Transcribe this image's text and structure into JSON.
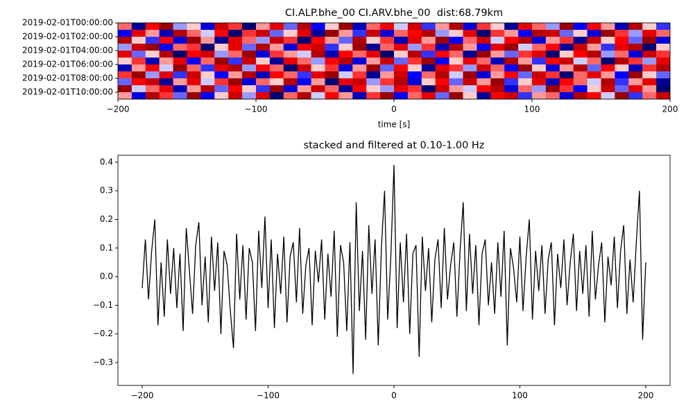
{
  "chart_data": [
    {
      "type": "heatmap",
      "title": "CI.ALP.bhe_00 CI.ARV.bhe_00  dist:68.79km",
      "xlabel": "time [s]",
      "colormap": "seismic",
      "vlim": [
        -1,
        1
      ],
      "yinvert": true,
      "x": [
        -195,
        -185,
        -175,
        -165,
        -155,
        -145,
        -135,
        -125,
        -115,
        -105,
        -95,
        -85,
        -75,
        -65,
        -55,
        -45,
        -35,
        -25,
        -15,
        -5,
        5,
        15,
        25,
        35,
        45,
        55,
        65,
        75,
        85,
        95,
        105,
        115,
        125,
        135,
        145,
        155,
        165,
        175,
        185,
        195
      ],
      "z": [
        [
          0.3,
          -0.8,
          0.5,
          0.9,
          -0.2,
          0.1,
          -0.6,
          0.7,
          0.4,
          -0.9,
          0.2,
          0.6,
          -0.3,
          0.8,
          -0.5,
          0.1,
          0.9,
          -0.7,
          0.3,
          0.5,
          -0.1,
          0.7,
          -0.4,
          0.2,
          0.8,
          -0.6,
          0.4,
          0.1,
          -0.8,
          0.6,
          0.3,
          -0.2,
          0.9,
          -0.5,
          0.5,
          0.2,
          -0.7,
          0.8,
          0.1,
          -0.4
        ],
        [
          -0.5,
          0.6,
          0.2,
          -0.7,
          0.8,
          0.3,
          -0.1,
          0.5,
          -0.9,
          0.4,
          0.7,
          -0.3,
          0.1,
          0.6,
          -0.8,
          0.9,
          0.2,
          -0.4,
          0.7,
          -0.6,
          0.3,
          0.5,
          0.8,
          -0.2,
          0.1,
          0.6,
          -0.9,
          0.4,
          0.2,
          -0.5,
          0.8,
          0.7,
          -0.3,
          0.1,
          -0.6,
          0.9,
          0.4,
          -0.2,
          0.6,
          0.3
        ],
        [
          0.8,
          0.1,
          -0.4,
          0.5,
          -0.6,
          0.9,
          0.2,
          -0.8,
          0.6,
          0.3,
          -0.2,
          0.7,
          0.4,
          -0.9,
          0.5,
          0.2,
          -0.3,
          0.8,
          0.1,
          0.4,
          -0.7,
          0.6,
          0.2,
          0.9,
          -0.5,
          0.3,
          0.7,
          -0.1,
          0.5,
          0.8,
          -0.6,
          0.2,
          0.4,
          -0.8,
          0.7,
          0.1,
          0.5,
          -0.3,
          0.9,
          -0.6
        ],
        [
          -0.2,
          0.7,
          0.9,
          -0.5,
          0.3,
          0.4,
          -0.9,
          0.1,
          0.6,
          -0.3,
          0.8,
          0.2,
          -0.6,
          0.5,
          0.7,
          -0.4,
          0.1,
          0.9,
          -0.8,
          0.3,
          0.6,
          -0.2,
          0.4,
          -0.7,
          0.8,
          0.2,
          -0.5,
          0.6,
          0.9,
          -0.1,
          0.3,
          0.5,
          -0.8,
          0.7,
          0.2,
          -0.4,
          0.6,
          0.8,
          -0.9,
          0.1
        ],
        [
          0.6,
          -0.3,
          0.1,
          0.8,
          -0.9,
          0.5,
          0.7,
          -0.2,
          0.3,
          0.9,
          -0.6,
          0.4,
          0.2,
          -0.1,
          0.8,
          -0.7,
          0.5,
          0.3,
          0.6,
          -0.9,
          0.1,
          0.8,
          -0.4,
          0.5,
          0.3,
          -0.8,
          0.9,
          0.2,
          -0.3,
          0.4,
          0.6,
          -0.9,
          0.1,
          0.5,
          0.8,
          -0.2,
          0.3,
          -0.6,
          0.7,
          0.4
        ],
        [
          0.1,
          0.4,
          -0.7,
          0.2,
          0.6,
          -0.5,
          0.3,
          0.9,
          -0.4,
          0.7,
          0.1,
          -0.8,
          0.6,
          0.3,
          -0.2,
          0.5,
          0.8,
          -0.6,
          0.2,
          0.7,
          -0.3,
          0.4,
          0.9,
          -0.5,
          0.1,
          0.6,
          0.3,
          -0.7,
          0.8,
          0.2,
          -0.4,
          0.5,
          0.7,
          -0.1,
          0.3,
          -0.9,
          0.8,
          0.4,
          -0.2,
          0.6
        ],
        [
          -0.7,
          0.2,
          0.5,
          -0.1,
          0.9,
          0.3,
          -0.4,
          0.6,
          0.8,
          -0.2,
          0.5,
          0.3,
          -0.9,
          0.7,
          0.1,
          0.4,
          -0.6,
          0.2,
          0.9,
          -0.3,
          0.5,
          0.1,
          -0.8,
          0.6,
          0.4,
          -0.2,
          0.7,
          0.3,
          -0.5,
          0.9,
          0.1,
          -0.6,
          0.2,
          0.8,
          -0.3,
          0.5,
          0.1,
          -0.7,
          0.4,
          0.8
        ],
        [
          0.4,
          0.9,
          -0.2,
          0.6,
          -0.4,
          0.7,
          0.1,
          -0.5,
          0.2,
          0.8,
          -0.7,
          0.5,
          0.3,
          -0.4,
          0.6,
          0.9,
          -0.1,
          0.4,
          -0.8,
          0.2,
          0.7,
          -0.5,
          0.3,
          0.8,
          -0.1,
          0.9,
          -0.6,
          0.2,
          0.5,
          -0.3,
          0.7,
          0.4,
          -0.9,
          0.3,
          0.6,
          0.2,
          -0.5,
          0.9,
          0.1,
          -0.3
        ],
        [
          -0.3,
          0.5,
          0.7,
          -0.8,
          0.2,
          0.6,
          -0.1,
          0.4,
          0.9,
          -0.6,
          0.3,
          0.1,
          0.8,
          -0.5,
          0.2,
          -0.9,
          0.6,
          0.7,
          -0.2,
          0.4,
          0.8,
          -0.6,
          0.1,
          0.5,
          -0.3,
          0.7,
          0.2,
          0.9,
          -0.4,
          0.1,
          0.6,
          -0.7,
          0.5,
          0.3,
          -0.1,
          0.8,
          -0.4,
          0.2,
          0.6,
          -0.8
        ],
        [
          0.9,
          -0.1,
          0.3,
          0.6,
          -0.7,
          0.2,
          0.8,
          -0.3,
          0.5,
          0.1,
          -0.4,
          0.9,
          -0.6,
          0.2,
          0.7,
          0.3,
          -0.8,
          0.5,
          0.1,
          -0.2,
          0.6,
          0.4,
          -0.9,
          0.7,
          0.2,
          -0.1,
          0.5,
          0.8,
          -0.6,
          0.3,
          -0.2,
          0.9,
          0.4,
          -0.5,
          0.1,
          0.7,
          -0.3,
          0.6,
          0.2,
          -0.9
        ],
        [
          0.2,
          -0.6,
          0.8,
          0.4,
          -0.3,
          0.9,
          -0.5,
          0.1,
          0.7,
          -0.2,
          0.6,
          -0.9,
          0.3,
          0.8,
          -0.1,
          0.5,
          0.2,
          -0.7,
          0.4,
          0.9,
          -0.5,
          0.3,
          0.6,
          -0.3,
          0.9,
          0.1,
          -0.8,
          0.5,
          0.7,
          -0.4,
          0.2,
          0.3,
          -0.6,
          0.8,
          0.5,
          -0.1,
          0.9,
          -0.4,
          0.3,
          0.7
        ]
      ],
      "xlim": [
        -200,
        200
      ],
      "xticks": [
        {
          "value": -200,
          "label": "−200"
        },
        {
          "value": -100,
          "label": "−100"
        },
        0,
        100,
        200
      ],
      "ylim": [
        0,
        11
      ],
      "yticks": [
        {
          "value": 0,
          "label": "2019-02-01T00:00:00"
        },
        {
          "value": 2,
          "label": "2019-02-01T02:00:00"
        },
        {
          "value": 4,
          "label": "2019-02-01T04:00:00"
        },
        {
          "value": 6,
          "label": "2019-02-01T06:00:00"
        },
        {
          "value": 8,
          "label": "2019-02-01T08:00:00"
        },
        {
          "value": 10,
          "label": "2019-02-01T10:00:00"
        }
      ]
    },
    {
      "type": "line",
      "title": "stacked and filtered at 0.10-1.00 Hz",
      "color": "#000000",
      "x": [
        -200,
        -197.5,
        -195,
        -192.5,
        -190,
        -187.5,
        -185,
        -182.5,
        -180,
        -177.5,
        -175,
        -172.5,
        -170,
        -167.5,
        -165,
        -162.5,
        -160,
        -157.5,
        -155,
        -152.5,
        -150,
        -147.5,
        -145,
        -142.5,
        -140,
        -137.5,
        -135,
        -132.5,
        -130,
        -127.5,
        -125,
        -122.5,
        -120,
        -117.5,
        -115,
        -112.5,
        -110,
        -107.5,
        -105,
        -102.5,
        -100,
        -97.5,
        -95,
        -92.5,
        -90,
        -87.5,
        -85,
        -82.5,
        -80,
        -77.5,
        -75,
        -72.5,
        -70,
        -67.5,
        -65,
        -62.5,
        -60,
        -57.5,
        -55,
        -52.5,
        -50,
        -47.5,
        -45,
        -42.5,
        -40,
        -37.5,
        -35,
        -32.5,
        -30,
        -27.5,
        -25,
        -22.5,
        -20,
        -17.5,
        -15,
        -12.5,
        -10,
        -7.5,
        -5,
        -2.5,
        0,
        2.5,
        5,
        7.5,
        10,
        12.5,
        15,
        17.5,
        20,
        22.5,
        25,
        27.5,
        30,
        32.5,
        35,
        37.5,
        40,
        42.5,
        45,
        47.5,
        50,
        52.5,
        55,
        57.5,
        60,
        62.5,
        65,
        67.5,
        70,
        72.5,
        75,
        77.5,
        80,
        82.5,
        85,
        87.5,
        90,
        92.5,
        95,
        97.5,
        100,
        102.5,
        105,
        107.5,
        110,
        112.5,
        115,
        117.5,
        120,
        122.5,
        125,
        127.5,
        130,
        132.5,
        135,
        137.5,
        140,
        142.5,
        145,
        147.5,
        150,
        152.5,
        155,
        157.5,
        160,
        162.5,
        165,
        167.5,
        170,
        172.5,
        175,
        177.5,
        180,
        182.5,
        185,
        187.5,
        190,
        192.5,
        195,
        197.5,
        200
      ],
      "values": [
        -0.04,
        0.13,
        -0.08,
        0.09,
        0.2,
        -0.17,
        0.05,
        -0.14,
        0.13,
        -0.06,
        0.1,
        -0.11,
        0.08,
        -0.19,
        0.17,
        0.02,
        -0.13,
        0.11,
        0.19,
        -0.1,
        0.07,
        -0.16,
        0.14,
        -0.05,
        0.12,
        -0.2,
        0.09,
        0.04,
        -0.12,
        -0.25,
        0.15,
        -0.08,
        0.11,
        -0.15,
        0.1,
        0.05,
        -0.19,
        0.16,
        -0.04,
        0.21,
        -0.11,
        0.13,
        -0.18,
        0.08,
        -0.06,
        0.14,
        -0.16,
        0.07,
        0.12,
        -0.09,
        0.17,
        -0.13,
        0.04,
        0.1,
        -0.17,
        0.09,
        -0.02,
        0.13,
        -0.15,
        0.08,
        -0.07,
        0.16,
        -0.21,
        0.11,
        0.05,
        -0.19,
        0.12,
        -0.34,
        0.26,
        -0.12,
        0.09,
        -0.22,
        0.18,
        -0.06,
        0.13,
        -0.24,
        0.1,
        0.3,
        -0.15,
        0.07,
        0.39,
        -0.18,
        0.12,
        -0.09,
        0.15,
        -0.2,
        0.08,
        0.11,
        -0.28,
        0.14,
        -0.05,
        0.1,
        -0.16,
        0.06,
        0.13,
        -0.11,
        0.17,
        -0.08,
        0.04,
        0.12,
        -0.14,
        0.09,
        0.26,
        -0.12,
        0.15,
        -0.06,
        0.11,
        -0.17,
        0.08,
        0.13,
        -0.1,
        0.05,
        -0.13,
        0.12,
        -0.07,
        0.16,
        -0.24,
        0.1,
        0.03,
        -0.09,
        0.14,
        -0.12,
        0.07,
        0.2,
        -0.15,
        0.09,
        -0.05,
        0.11,
        -0.13,
        0.06,
        0.12,
        -0.17,
        0.08,
        -0.04,
        0.13,
        -0.1,
        0.05,
        0.15,
        -0.12,
        0.09,
        -0.06,
        0.11,
        -0.14,
        0.16,
        -0.08,
        0.04,
        0.12,
        -0.16,
        0.07,
        -0.03,
        0.14,
        -0.11,
        0.09,
        0.18,
        -0.13,
        0.06,
        -0.09,
        0.12,
        0.3,
        -0.22,
        0.05
      ],
      "xlim": [
        -219.3,
        219.3
      ],
      "xticks": [
        {
          "value": -200,
          "label": "−200"
        },
        {
          "value": -100,
          "label": "−100"
        },
        0,
        100,
        200
      ],
      "ylim": [
        -0.38,
        0.424
      ],
      "yticks": [
        {
          "value": -0.3,
          "label": "−0.3"
        },
        {
          "value": -0.2,
          "label": "−0.2"
        },
        {
          "value": -0.1,
          "label": "−0.1"
        },
        {
          "value": 0,
          "label": "0.0"
        },
        0.1,
        0.2,
        0.3,
        0.4
      ]
    }
  ]
}
